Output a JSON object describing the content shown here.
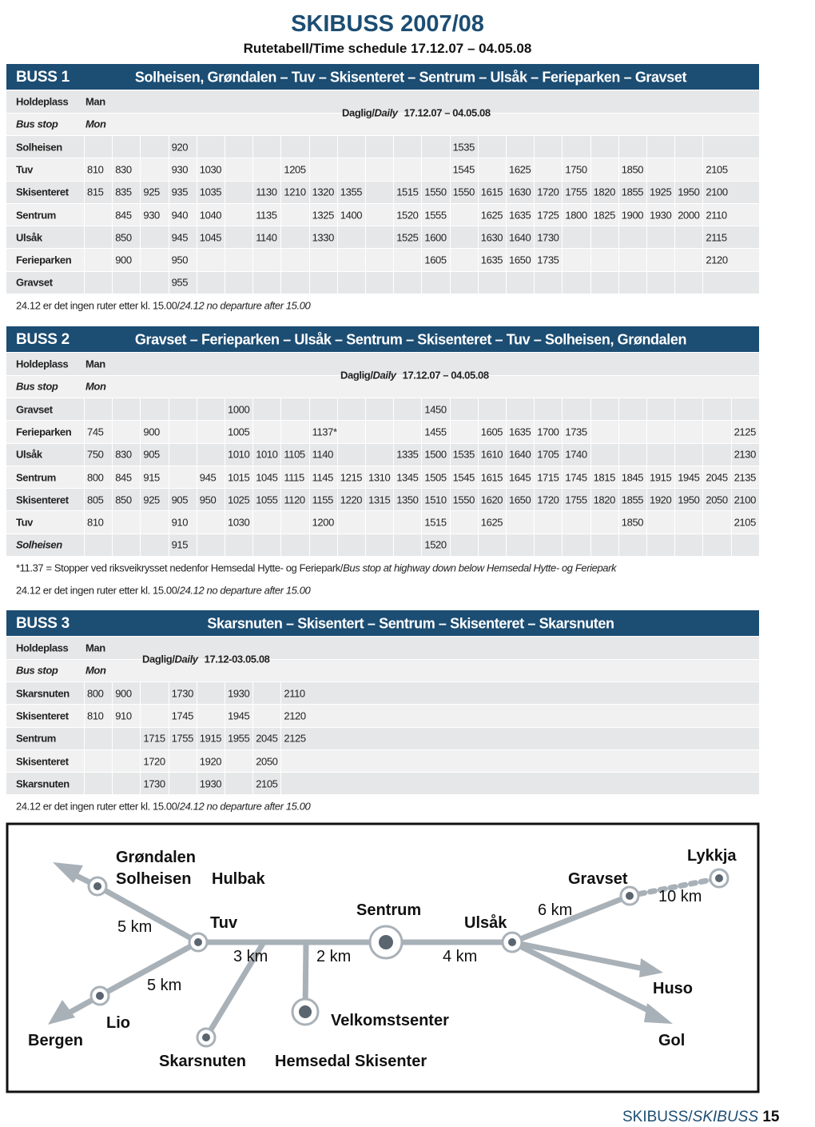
{
  "header": {
    "title": "SKIBUSS 2007/08",
    "subtitle": "Rutetabell/Time schedule 17.12.07 – 04.05.08"
  },
  "tables": [
    {
      "bus": "BUSS 1",
      "route": "Solheisen, Grøndalen – Tuv – Skisenteret – Sentrum – Ulsåk – Ferieparken – Gravset",
      "stop_label": "Holdeplass",
      "stop_label_en": "Bus stop",
      "day_label": "Man",
      "day_label_en": "Mon",
      "period_label": "Daglig/",
      "period_label_en": "Daily",
      "period": "17.12.07 – 04.05.08",
      "rows": [
        {
          "stop": "Solheisen",
          "times": [
            null,
            null,
            null,
            "920",
            null,
            null,
            null,
            null,
            null,
            null,
            null,
            null,
            null,
            "1535",
            null,
            null,
            null,
            null,
            null,
            null,
            null,
            null,
            null
          ]
        },
        {
          "stop": "Tuv",
          "times": [
            "810",
            "830",
            null,
            "930",
            "1030",
            null,
            null,
            "1205",
            null,
            null,
            null,
            null,
            null,
            "1545",
            null,
            "1625",
            null,
            "1750",
            null,
            "1850",
            null,
            null,
            "2105"
          ]
        },
        {
          "stop": "Skisenteret",
          "times": [
            "815",
            "835",
            "925",
            "935",
            "1035",
            null,
            "1130",
            "1210",
            "1320",
            "1355",
            null,
            "1515",
            "1550",
            "1550",
            "1615",
            "1630",
            "1720",
            "1755",
            "1820",
            "1855",
            "1925",
            "1950",
            "2100"
          ]
        },
        {
          "stop": "Sentrum",
          "times": [
            null,
            "845",
            "930",
            "940",
            "1040",
            null,
            "1135",
            null,
            "1325",
            "1400",
            null,
            "1520",
            "1555",
            null,
            "1625",
            "1635",
            "1725",
            "1800",
            "1825",
            "1900",
            "1930",
            "2000",
            "2110"
          ]
        },
        {
          "stop": "Ulsåk",
          "times": [
            null,
            "850",
            null,
            "945",
            "1045",
            null,
            "1140",
            null,
            "1330",
            null,
            null,
            "1525",
            "1600",
            null,
            "1630",
            "1640",
            "1730",
            null,
            null,
            null,
            null,
            null,
            "2115"
          ]
        },
        {
          "stop": "Ferieparken",
          "times": [
            null,
            "900",
            null,
            "950",
            null,
            null,
            null,
            null,
            null,
            null,
            null,
            null,
            "1605",
            null,
            "1635",
            "1650",
            "1735",
            null,
            null,
            null,
            null,
            null,
            "2120"
          ]
        },
        {
          "stop": "Gravset",
          "times": [
            null,
            null,
            null,
            "955",
            null,
            null,
            null,
            null,
            null,
            null,
            null,
            null,
            null,
            null,
            null,
            null,
            null,
            null,
            null,
            null,
            null,
            null,
            null
          ]
        }
      ],
      "notes": [
        {
          "no": "24.12 er det ingen ruter etter kl. 15.00/",
          "en": "24.12 no departure after 15.00"
        }
      ]
    },
    {
      "bus": "BUSS 2",
      "route": "Gravset  – Ferieparken – Ulsåk – Sentrum – Skisenteret – Tuv – Solheisen, Grøndalen",
      "stop_label": "Holdeplass",
      "stop_label_en": "Bus stop",
      "day_label": "Man",
      "day_label_en": "Mon",
      "period_label": "Daglig/",
      "period_label_en": "Daily",
      "period": "17.12.07 – 04.05.08",
      "rows": [
        {
          "stop": "Gravset",
          "times": [
            null,
            null,
            null,
            null,
            null,
            "1000",
            null,
            null,
            null,
            null,
            null,
            null,
            "1450",
            null,
            null,
            null,
            null,
            null,
            null,
            null,
            null,
            null,
            null,
            null
          ]
        },
        {
          "stop": "Ferieparken",
          "times": [
            "745",
            null,
            "900",
            null,
            null,
            "1005",
            null,
            null,
            "1137*",
            null,
            null,
            null,
            "1455",
            null,
            "1605",
            "1635",
            "1700",
            "1735",
            null,
            null,
            null,
            null,
            null,
            "2125"
          ]
        },
        {
          "stop": "Ulsåk",
          "times": [
            "750",
            "830",
            "905",
            null,
            null,
            "1010",
            "1010",
            "1105",
            "1140",
            null,
            null,
            "1335",
            "1500",
            "1535",
            "1610",
            "1640",
            "1705",
            "1740",
            null,
            null,
            null,
            null,
            null,
            "2130"
          ]
        },
        {
          "stop": "Sentrum",
          "times": [
            "800",
            "845",
            "915",
            null,
            "945",
            "1015",
            "1045",
            "1115",
            "1145",
            "1215",
            "1310",
            "1345",
            "1505",
            "1545",
            "1615",
            "1645",
            "1715",
            "1745",
            "1815",
            "1845",
            "1915",
            "1945",
            "2045",
            "2135"
          ]
        },
        {
          "stop": "Skisenteret",
          "times": [
            "805",
            "850",
            "925",
            "905",
            "950",
            "1025",
            "1055",
            "1120",
            "1155",
            "1220",
            "1315",
            "1350",
            "1510",
            "1550",
            "1620",
            "1650",
            "1720",
            "1755",
            "1820",
            "1855",
            "1920",
            "1950",
            "2050",
            "2100"
          ]
        },
        {
          "stop": "Tuv",
          "times": [
            "810",
            null,
            null,
            "910",
            null,
            "1030",
            null,
            null,
            "1200",
            null,
            null,
            null,
            "1515",
            null,
            "1625",
            null,
            null,
            null,
            null,
            "1850",
            null,
            null,
            null,
            "2105"
          ]
        },
        {
          "stop": "Solheisen",
          "stop_italic": true,
          "times": [
            null,
            null,
            null,
            "915",
            null,
            null,
            null,
            null,
            null,
            null,
            null,
            null,
            "1520",
            null,
            null,
            null,
            null,
            null,
            null,
            null,
            null,
            null,
            null,
            null
          ]
        }
      ],
      "notes": [
        {
          "no": "*11.37 = Stopper ved riksveikrysset nedenfor Hemsedal Hytte- og Feriepark/",
          "en": "Bus stop  at highway down below Hemsedal Hytte- og Feriepark"
        },
        {
          "no": "24.12 er det ingen ruter etter kl. 15.00/",
          "en": "24.12 no departure after 15.00"
        }
      ]
    },
    {
      "bus": "BUSS 3",
      "route": "Skarsnuten  – Skisentert – Sentrum – Skisenteret – Skarsnuten",
      "stop_label": "Holdeplass",
      "stop_label_en": "Bus stop",
      "day_label": "Man",
      "day_label_en": "Mon",
      "period_label": "Daglig/",
      "period_label_en": "Daily",
      "period": "17.12-03.05.08",
      "rows": [
        {
          "stop": "Skarsnuten",
          "times": [
            "800",
            "900",
            null,
            "1730",
            null,
            "1930",
            null,
            "2110"
          ]
        },
        {
          "stop": "Skisenteret",
          "times": [
            "810",
            "910",
            null,
            "1745",
            null,
            "1945",
            null,
            "2120"
          ]
        },
        {
          "stop": "Sentrum",
          "times": [
            null,
            null,
            "1715",
            "1755",
            "1915",
            "1955",
            "2045",
            "2125"
          ]
        },
        {
          "stop": "Skisenteret",
          "times": [
            null,
            null,
            "1720",
            null,
            "1920",
            null,
            "2050",
            null
          ]
        },
        {
          "stop": "Skarsnuten",
          "times": [
            null,
            null,
            "1730",
            null,
            "1930",
            null,
            "2105",
            null
          ]
        }
      ],
      "notes": [
        {
          "no": "24.12 er det ingen ruter etter kl. 15.00/",
          "en": "24.12 no departure after 15.00"
        }
      ]
    }
  ],
  "map": {
    "labels": [
      "Grøndalen",
      "Solheisen",
      "Hulbak",
      "Sentrum",
      "Gravset",
      "Lykkja",
      "5 km",
      "Tuv",
      "Ulsåk",
      "6 km",
      "10 km",
      "3 km",
      "2 km",
      "4 km",
      "5 km",
      "Huso",
      "Lio",
      "Velkomstsenter",
      "Bergen",
      "Gol",
      "Skarsnuten",
      "Hemsedal Skisenter"
    ]
  },
  "footer": {
    "text": "SKIBUSS/",
    "text_en": "SKIBUSS",
    "page": "15"
  }
}
